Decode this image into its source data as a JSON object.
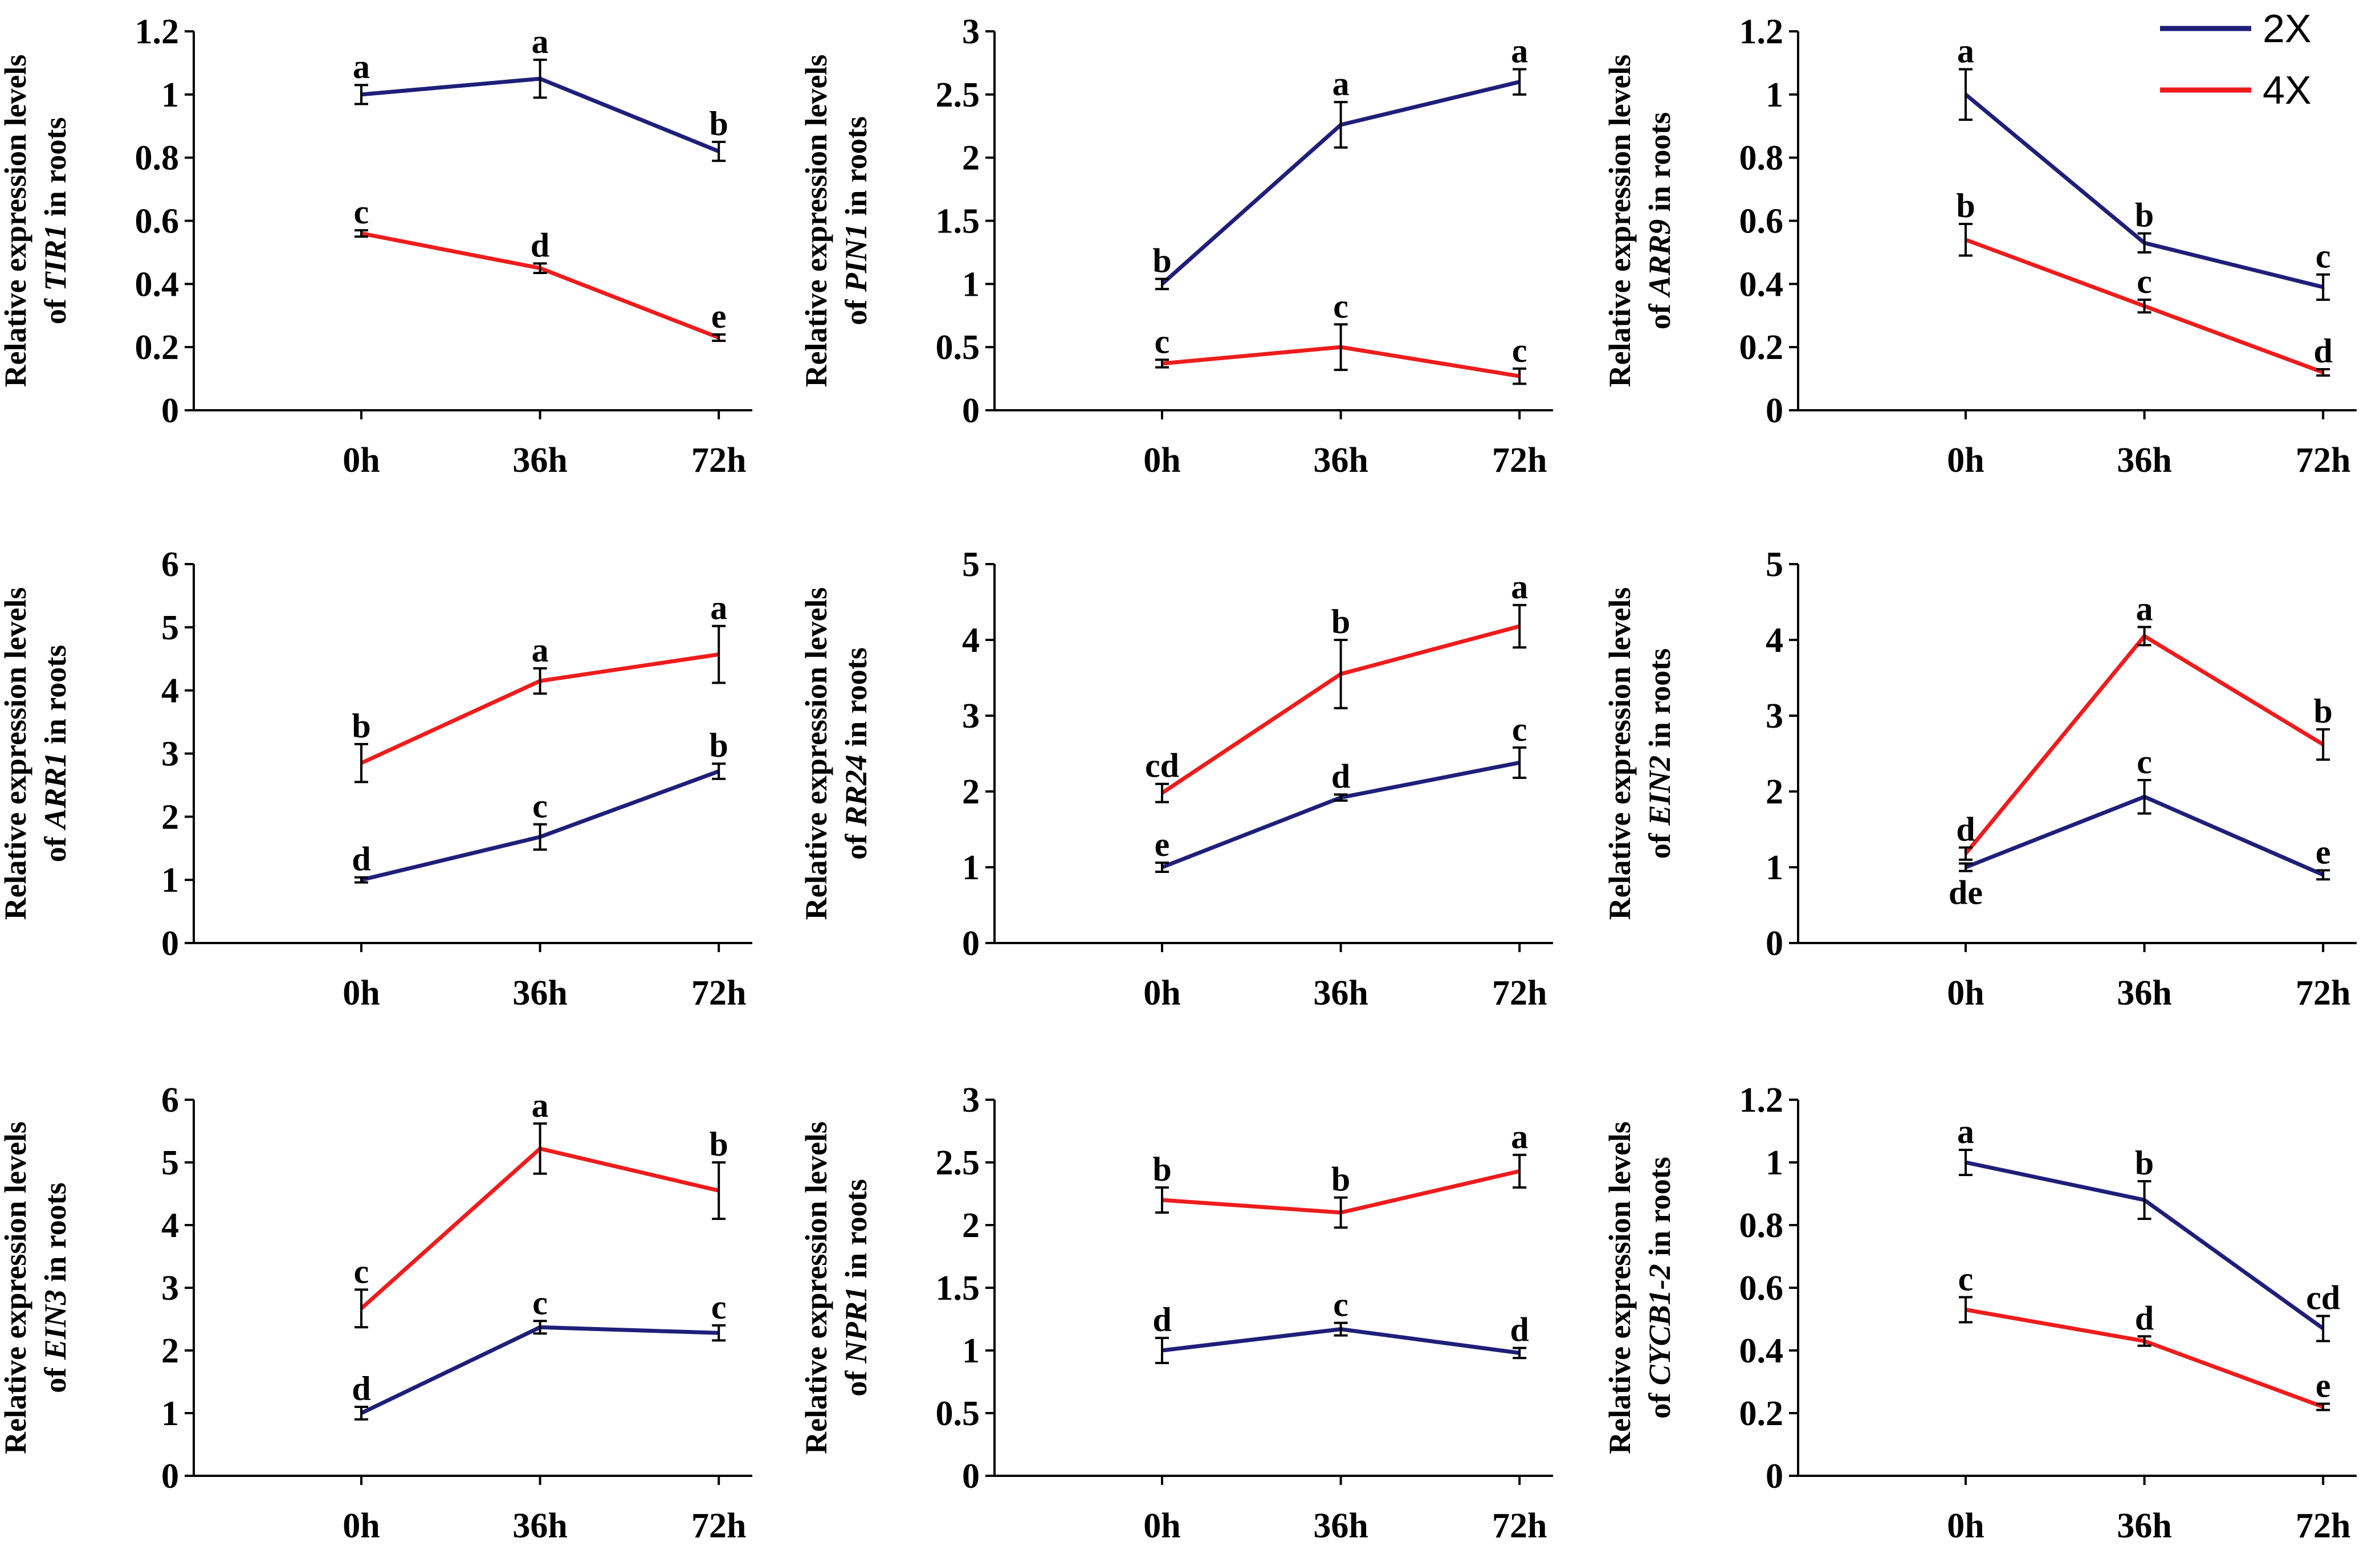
{
  "legend": {
    "items": [
      {
        "label": "2X",
        "color": "#1f1f7a"
      },
      {
        "label": "4X",
        "color": "#ee1c1c"
      }
    ]
  },
  "chart_data": [
    {
      "type": "line",
      "gene": "TIR1",
      "ylabel_pre": "Relative expression levels",
      "ylabel_of": "of ",
      "ylabel_suffix": " in roots",
      "categories": [
        "0h",
        "36h",
        "72h"
      ],
      "ylim": [
        0,
        1.2
      ],
      "yticks": [
        {
          "v": 0,
          "t": "0"
        },
        {
          "v": 0.2,
          "t": "0.2"
        },
        {
          "v": 0.4,
          "t": "0.4"
        },
        {
          "v": 0.6,
          "t": "0.6"
        },
        {
          "v": 0.8,
          "t": "0.8"
        },
        {
          "v": 1,
          "t": "1"
        },
        {
          "v": 1.2,
          "t": "1.2"
        }
      ],
      "series": [
        {
          "name": "2X",
          "values": [
            1.0,
            1.05,
            0.82
          ],
          "errors": [
            0.03,
            0.06,
            0.03
          ],
          "letters": [
            "a",
            "a",
            "b"
          ]
        },
        {
          "name": "4X",
          "values": [
            0.56,
            0.45,
            0.23
          ],
          "errors": [
            0.01,
            0.015,
            0.01
          ],
          "letters": [
            "c",
            "d",
            "e"
          ]
        }
      ]
    },
    {
      "type": "line",
      "gene": "PIN1",
      "ylabel_pre": "Relative expression levels",
      "ylabel_of": "of ",
      "ylabel_suffix": " in roots",
      "categories": [
        "0h",
        "36h",
        "72h"
      ],
      "ylim": [
        0,
        3
      ],
      "yticks": [
        {
          "v": 0,
          "t": "0"
        },
        {
          "v": 0.5,
          "t": "0.5"
        },
        {
          "v": 1,
          "t": "1"
        },
        {
          "v": 1.5,
          "t": "1.5"
        },
        {
          "v": 2,
          "t": "2"
        },
        {
          "v": 2.5,
          "t": "2.5"
        },
        {
          "v": 3,
          "t": "3"
        }
      ],
      "series": [
        {
          "name": "2X",
          "values": [
            1.0,
            2.26,
            2.6
          ],
          "errors": [
            0.04,
            0.18,
            0.1
          ],
          "letters": [
            "b",
            "a",
            "a"
          ]
        },
        {
          "name": "4X",
          "values": [
            0.37,
            0.5,
            0.27
          ],
          "errors": [
            0.03,
            0.18,
            0.06
          ],
          "letters": [
            "c",
            "c",
            "c"
          ]
        }
      ]
    },
    {
      "type": "line",
      "gene": "ARR9",
      "ylabel_pre": "Relative expression levels",
      "ylabel_of": "of ",
      "ylabel_suffix": " in roots",
      "categories": [
        "0h",
        "36h",
        "72h"
      ],
      "ylim": [
        0,
        1.2
      ],
      "yticks": [
        {
          "v": 0,
          "t": "0"
        },
        {
          "v": 0.2,
          "t": "0.2"
        },
        {
          "v": 0.4,
          "t": "0.4"
        },
        {
          "v": 0.6,
          "t": "0.6"
        },
        {
          "v": 0.8,
          "t": "0.8"
        },
        {
          "v": 1,
          "t": "1"
        },
        {
          "v": 1.2,
          "t": "1.2"
        }
      ],
      "series": [
        {
          "name": "2X",
          "values": [
            1.0,
            0.53,
            0.39
          ],
          "errors": [
            0.08,
            0.03,
            0.04
          ],
          "letters": [
            "a",
            "b",
            "c"
          ]
        },
        {
          "name": "4X",
          "values": [
            0.54,
            0.33,
            0.12
          ],
          "errors": [
            0.05,
            0.02,
            0.01
          ],
          "letters": [
            "b",
            "c",
            "d"
          ]
        }
      ]
    },
    {
      "type": "line",
      "gene": "ARR1",
      "ylabel_pre": "Relative expression levels",
      "ylabel_of": "of ",
      "ylabel_suffix": " in roots",
      "categories": [
        "0h",
        "36h",
        "72h"
      ],
      "ylim": [
        0,
        6
      ],
      "yticks": [
        {
          "v": 0,
          "t": "0"
        },
        {
          "v": 1,
          "t": "1"
        },
        {
          "v": 2,
          "t": "2"
        },
        {
          "v": 3,
          "t": "3"
        },
        {
          "v": 4,
          "t": "4"
        },
        {
          "v": 5,
          "t": "5"
        },
        {
          "v": 6,
          "t": "6"
        }
      ],
      "series": [
        {
          "name": "2X",
          "values": [
            1.0,
            1.68,
            2.72
          ],
          "errors": [
            0.04,
            0.2,
            0.12
          ],
          "letters": [
            "d",
            "c",
            "b"
          ]
        },
        {
          "name": "4X",
          "values": [
            2.85,
            4.15,
            4.57
          ],
          "errors": [
            0.3,
            0.2,
            0.45
          ],
          "letters": [
            "b",
            "a",
            "a"
          ]
        }
      ]
    },
    {
      "type": "line",
      "gene": "RR24",
      "ylabel_pre": "Relative expression levels",
      "ylabel_of": "of ",
      "ylabel_suffix": " in roots",
      "categories": [
        "0h",
        "36h",
        "72h"
      ],
      "ylim": [
        0,
        5
      ],
      "yticks": [
        {
          "v": 0,
          "t": "0"
        },
        {
          "v": 1,
          "t": "1"
        },
        {
          "v": 2,
          "t": "2"
        },
        {
          "v": 3,
          "t": "3"
        },
        {
          "v": 4,
          "t": "4"
        },
        {
          "v": 5,
          "t": "5"
        }
      ],
      "series": [
        {
          "name": "2X",
          "values": [
            1.0,
            1.92,
            2.38
          ],
          "errors": [
            0.06,
            0.04,
            0.2
          ],
          "letters": [
            "e",
            "d",
            "c"
          ]
        },
        {
          "name": "4X",
          "values": [
            1.98,
            3.55,
            4.18
          ],
          "errors": [
            0.12,
            0.45,
            0.28
          ],
          "letters": [
            "cd",
            "b",
            "a"
          ]
        }
      ]
    },
    {
      "type": "line",
      "gene": "EIN2",
      "ylabel_pre": "Relative expression levels",
      "ylabel_of": "of ",
      "ylabel_suffix": " in roots",
      "categories": [
        "0h",
        "36h",
        "72h"
      ],
      "ylim": [
        0,
        5
      ],
      "yticks": [
        {
          "v": 0,
          "t": "0"
        },
        {
          "v": 1,
          "t": "1"
        },
        {
          "v": 2,
          "t": "2"
        },
        {
          "v": 3,
          "t": "3"
        },
        {
          "v": 4,
          "t": "4"
        },
        {
          "v": 5,
          "t": "5"
        }
      ],
      "series": [
        {
          "name": "2X",
          "values": [
            1.0,
            1.93,
            0.9
          ],
          "errors": [
            0.05,
            0.22,
            0.06
          ],
          "letters": [
            "de",
            "c",
            "e"
          ],
          "letter_pos": [
            "below",
            "above",
            "above"
          ]
        },
        {
          "name": "4X",
          "values": [
            1.18,
            4.05,
            2.62
          ],
          "errors": [
            0.08,
            0.12,
            0.2
          ],
          "letters": [
            "d",
            "a",
            "b"
          ]
        }
      ]
    },
    {
      "type": "line",
      "gene": "EIN3",
      "ylabel_pre": "Relative expression levels",
      "ylabel_of": "of ",
      "ylabel_suffix": " in roots",
      "categories": [
        "0h",
        "36h",
        "72h"
      ],
      "ylim": [
        0,
        6
      ],
      "yticks": [
        {
          "v": 0,
          "t": "0"
        },
        {
          "v": 1,
          "t": "1"
        },
        {
          "v": 2,
          "t": "2"
        },
        {
          "v": 3,
          "t": "3"
        },
        {
          "v": 4,
          "t": "4"
        },
        {
          "v": 5,
          "t": "5"
        },
        {
          "v": 6,
          "t": "6"
        }
      ],
      "series": [
        {
          "name": "2X",
          "values": [
            1.0,
            2.37,
            2.28
          ],
          "errors": [
            0.1,
            0.1,
            0.12
          ],
          "letters": [
            "d",
            "c",
            "c"
          ]
        },
        {
          "name": "4X",
          "values": [
            2.67,
            5.22,
            4.55
          ],
          "errors": [
            0.3,
            0.4,
            0.45
          ],
          "letters": [
            "c",
            "a",
            "b"
          ]
        }
      ]
    },
    {
      "type": "line",
      "gene": "NPR1",
      "ylabel_pre": "Relative expression levels",
      "ylabel_of": "of ",
      "ylabel_suffix": " in roots",
      "categories": [
        "0h",
        "36h",
        "72h"
      ],
      "ylim": [
        0,
        3
      ],
      "yticks": [
        {
          "v": 0,
          "t": "0"
        },
        {
          "v": 0.5,
          "t": "0.5"
        },
        {
          "v": 1,
          "t": "1"
        },
        {
          "v": 1.5,
          "t": "1.5"
        },
        {
          "v": 2,
          "t": "2"
        },
        {
          "v": 2.5,
          "t": "2.5"
        },
        {
          "v": 3,
          "t": "3"
        }
      ],
      "series": [
        {
          "name": "2X",
          "values": [
            1.0,
            1.17,
            0.98
          ],
          "errors": [
            0.1,
            0.05,
            0.04
          ],
          "letters": [
            "d",
            "c",
            "d"
          ]
        },
        {
          "name": "4X",
          "values": [
            2.2,
            2.1,
            2.43
          ],
          "errors": [
            0.1,
            0.12,
            0.13
          ],
          "letters": [
            "b",
            "b",
            "a"
          ]
        }
      ]
    },
    {
      "type": "line",
      "gene": "CYCB1-2",
      "ylabel_pre": "Relative expression levels",
      "ylabel_of": "of ",
      "ylabel_suffix": " in roots",
      "categories": [
        "0h",
        "36h",
        "72h"
      ],
      "ylim": [
        0,
        1.2
      ],
      "yticks": [
        {
          "v": 0,
          "t": "0"
        },
        {
          "v": 0.2,
          "t": "0.2"
        },
        {
          "v": 0.4,
          "t": "0.4"
        },
        {
          "v": 0.6,
          "t": "0.6"
        },
        {
          "v": 0.8,
          "t": "0.8"
        },
        {
          "v": 1,
          "t": "1"
        },
        {
          "v": 1.2,
          "t": "1.2"
        }
      ],
      "series": [
        {
          "name": "2X",
          "values": [
            1.0,
            0.88,
            0.47
          ],
          "errors": [
            0.04,
            0.06,
            0.04
          ],
          "letters": [
            "a",
            "b",
            "cd"
          ]
        },
        {
          "name": "4X",
          "values": [
            0.53,
            0.43,
            0.22
          ],
          "errors": [
            0.04,
            0.015,
            0.01
          ],
          "letters": [
            "c",
            "d",
            "e"
          ]
        }
      ]
    }
  ]
}
